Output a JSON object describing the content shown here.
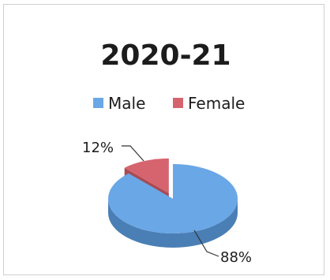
{
  "chart_data": {
    "type": "pie",
    "title": "2020-21",
    "legend_position": "top",
    "categories": [
      "Male",
      "Female"
    ],
    "values": [
      88,
      12
    ],
    "labels": [
      "88%",
      "12%"
    ],
    "colors": {
      "Male": "#6aa7e6",
      "Male_side": "#4a7fb5",
      "Female": "#d5646f",
      "Female_side": "#a94a53"
    },
    "exploded": "Female",
    "style": "3d"
  }
}
